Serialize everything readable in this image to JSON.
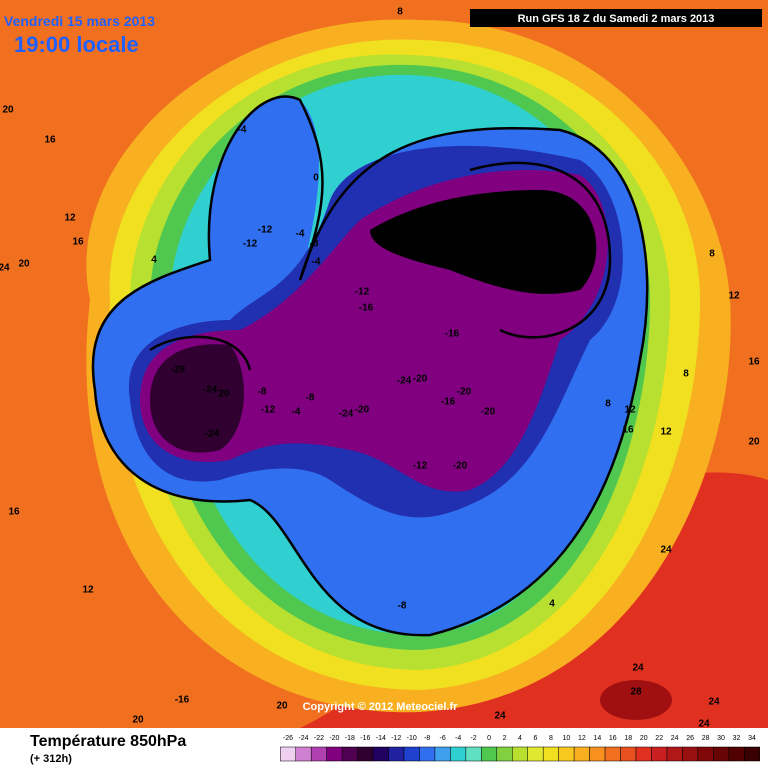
{
  "header": {
    "date": "Vendredi 15 mars 2013",
    "time": "19:00 locale",
    "run": "Run GFS 18 Z du Samedi 2 mars 2013"
  },
  "footer": {
    "title": "Température 850hPa",
    "lead": "(+ 312h)",
    "copyright": "Copyright © 2012 Meteociel.fr"
  },
  "legend": {
    "ticks": [
      -26,
      -24,
      -22,
      -20,
      -18,
      -16,
      -14,
      -12,
      -10,
      -8,
      -6,
      -4,
      -2,
      0,
      2,
      4,
      6,
      8,
      10,
      12,
      14,
      16,
      18,
      20,
      22,
      24,
      26,
      28,
      30,
      32,
      34
    ]
  },
  "map": {
    "labels": [
      "8",
      "20",
      "16",
      "-4",
      "0",
      "12",
      "16",
      "24",
      "20",
      "4",
      "-12",
      "-12",
      "-4",
      "-8",
      "-4",
      "-28",
      "-20",
      "-24",
      "-32",
      "-28",
      "-12",
      "-16",
      "-16",
      "-28",
      "-24",
      "20",
      "-8",
      "-12",
      "-4",
      "-8",
      "-24",
      "-24",
      "-20",
      "-24",
      "-20",
      "-20",
      "-16",
      "-20",
      "-12",
      "-20",
      "8",
      "12",
      "16",
      "12",
      "8",
      "16",
      "20",
      "12",
      "8",
      "16",
      "12",
      "-8",
      "4",
      "24",
      "24",
      "28",
      "24",
      "24",
      "-16",
      "20",
      "20",
      "24"
    ]
  }
}
